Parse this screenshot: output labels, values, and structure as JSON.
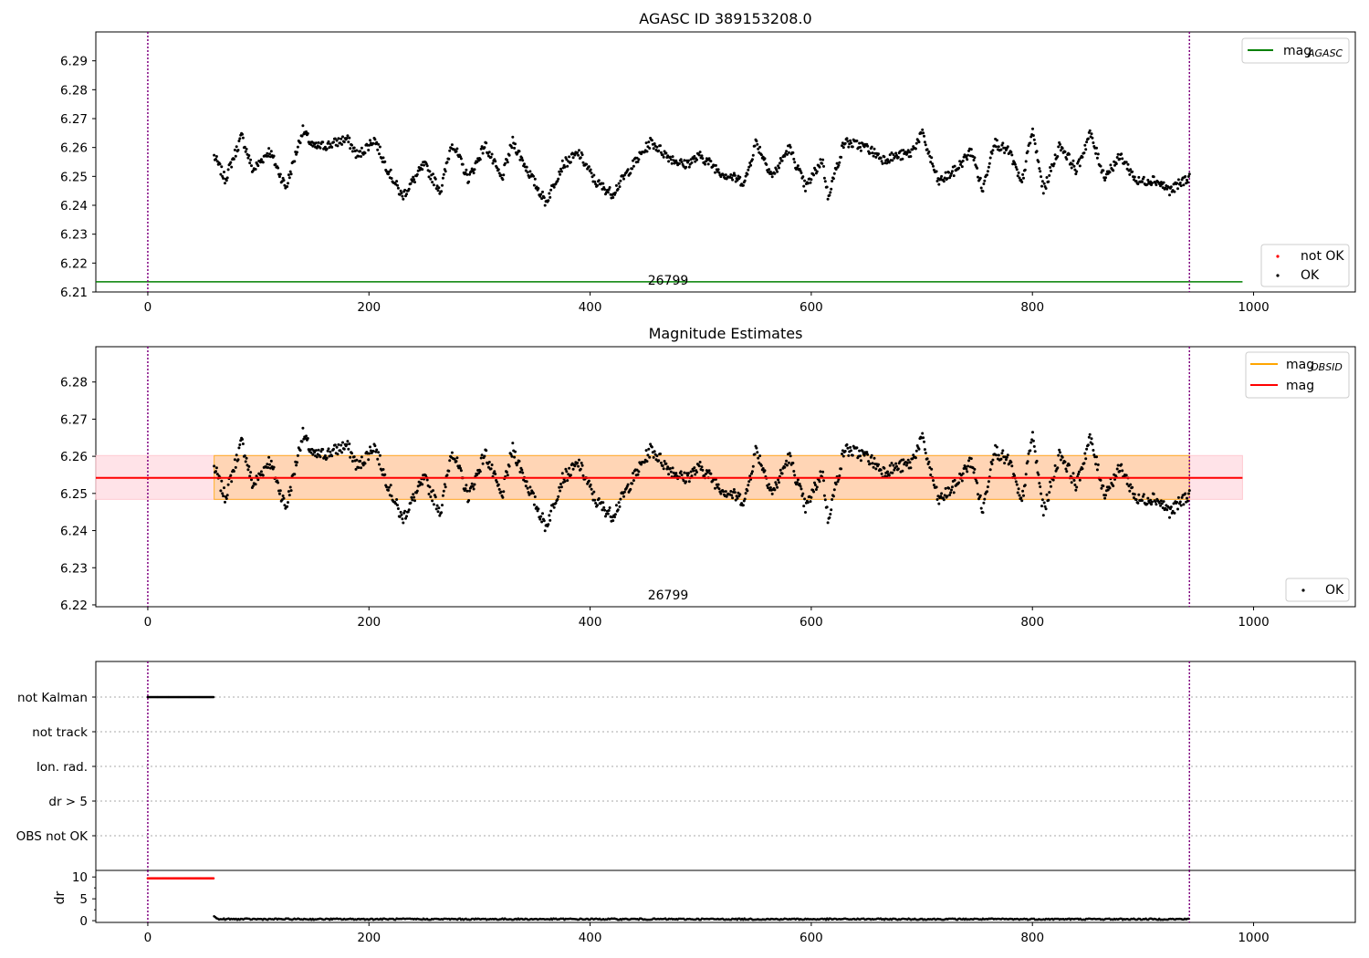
{
  "chart_data": [
    {
      "type": "scatter",
      "title": "AGASC ID 389153208.0",
      "xlim": [
        -47,
        1092
      ],
      "ylim": [
        6.21,
        6.3
      ],
      "xticks": [
        0,
        200,
        400,
        600,
        800,
        1000
      ],
      "yticks": [
        6.21,
        6.22,
        6.23,
        6.24,
        6.25,
        6.26,
        6.27,
        6.28,
        6.29
      ],
      "series": [
        {
          "name": "mag_AGASC",
          "kind": "hline",
          "value": 6.2135,
          "x_range": [
            -47,
            990
          ],
          "color": "#008000"
        },
        {
          "name": "not OK",
          "kind": "points",
          "color": "#ff0000"
        },
        {
          "name": "OK",
          "kind": "points",
          "color": "#000000",
          "anchors": [
            [
              60,
              6.257
            ],
            [
              70,
              6.249
            ],
            [
              85,
              6.264
            ],
            [
              95,
              6.252
            ],
            [
              110,
              6.259
            ],
            [
              125,
              6.246
            ],
            [
              140,
              6.266
            ],
            [
              150,
              6.26
            ],
            [
              165,
              6.261
            ],
            [
              180,
              6.263
            ],
            [
              190,
              6.257
            ],
            [
              205,
              6.263
            ],
            [
              215,
              6.254
            ],
            [
              230,
              6.243
            ],
            [
              250,
              6.254
            ],
            [
              265,
              6.245
            ],
            [
              275,
              6.262
            ],
            [
              290,
              6.249
            ],
            [
              305,
              6.261
            ],
            [
              320,
              6.249
            ],
            [
              330,
              6.262
            ],
            [
              345,
              6.251
            ],
            [
              360,
              6.241
            ],
            [
              375,
              6.254
            ],
            [
              390,
              6.258
            ],
            [
              405,
              6.248
            ],
            [
              420,
              6.244
            ],
            [
              435,
              6.252
            ],
            [
              455,
              6.262
            ],
            [
              470,
              6.257
            ],
            [
              485,
              6.254
            ],
            [
              500,
              6.257
            ],
            [
              520,
              6.251
            ],
            [
              540,
              6.248
            ],
            [
              550,
              6.262
            ],
            [
              565,
              6.25
            ],
            [
              580,
              6.26
            ],
            [
              595,
              6.246
            ],
            [
              610,
              6.256
            ],
            [
              615,
              6.243
            ],
            [
              630,
              6.262
            ],
            [
              650,
              6.26
            ],
            [
              665,
              6.256
            ],
            [
              690,
              6.258
            ],
            [
              700,
              6.265
            ],
            [
              715,
              6.248
            ],
            [
              730,
              6.252
            ],
            [
              745,
              6.259
            ],
            [
              755,
              6.245
            ],
            [
              765,
              6.262
            ],
            [
              780,
              6.258
            ],
            [
              790,
              6.247
            ],
            [
              800,
              6.266
            ],
            [
              810,
              6.245
            ],
            [
              825,
              6.261
            ],
            [
              840,
              6.252
            ],
            [
              852,
              6.265
            ],
            [
              865,
              6.25
            ],
            [
              880,
              6.257
            ],
            [
              895,
              6.248
            ],
            [
              910,
              6.249
            ],
            [
              925,
              6.245
            ],
            [
              942,
              6.25
            ]
          ]
        }
      ],
      "vlines": [
        0,
        942
      ],
      "vline_color": "#800080",
      "annotation": "26799",
      "legend_upper": [
        "mag",
        "AGASC"
      ],
      "legend_lower": [
        "not OK",
        "OK"
      ]
    },
    {
      "type": "scatter",
      "title": "Magnitude Estimates",
      "xlim": [
        -47,
        1092
      ],
      "ylim": [
        6.2195,
        6.2895
      ],
      "xticks": [
        0,
        200,
        400,
        600,
        800,
        1000
      ],
      "yticks": [
        6.22,
        6.23,
        6.24,
        6.25,
        6.26,
        6.27,
        6.28
      ],
      "series": [
        {
          "name": "mag_OBSID",
          "kind": "hline",
          "value": 6.2542,
          "x_range": [
            -47,
            990
          ],
          "color": "#ffa500"
        },
        {
          "name": "mag",
          "kind": "hline",
          "value": 6.2542,
          "x_range": [
            -47,
            990
          ],
          "color": "#ff0000"
        },
        {
          "name": "OK",
          "kind": "points",
          "color": "#000000",
          "same_as": "chart_data.0.series.2"
        }
      ],
      "bands": [
        {
          "y": [
            6.2484,
            6.2602
          ],
          "x_range": [
            -47,
            990
          ],
          "color": "#ffc0cb",
          "opacity": 0.45
        },
        {
          "y": [
            6.2484,
            6.2602
          ],
          "x_range": [
            60,
            942
          ],
          "color": "#ffa500",
          "opacity": 0.22
        }
      ],
      "vlines": [
        0,
        942
      ],
      "annotation": "26799",
      "legend_upper": [
        "mag",
        "OBSID",
        "mag"
      ],
      "legend_lower": [
        "OK"
      ]
    },
    {
      "type": "scatter",
      "title": "",
      "xlim": [
        -47,
        1092
      ],
      "flags": [
        "not Kalman",
        "not track",
        "Ion. rad.",
        "dr > 5",
        "OBS not OK"
      ],
      "not_kalman_x": [
        0,
        60
      ],
      "vlines": [
        0,
        942
      ]
    },
    {
      "type": "scatter",
      "title": "",
      "xlim": [
        -47,
        1092
      ],
      "ylim": [
        -0.4,
        11.5
      ],
      "ylabel": "dr",
      "yticks": [
        0,
        5,
        10
      ],
      "xticks": [
        0,
        200,
        400,
        600,
        800,
        1000
      ],
      "series": [
        {
          "name": "dr high",
          "x_range": [
            0,
            60
          ],
          "value": 9.7,
          "color": "#ff0000"
        },
        {
          "name": "dr",
          "x_range": [
            60,
            942
          ],
          "value": 0.35,
          "color": "#000000"
        }
      ],
      "vlines": [
        0,
        942
      ]
    }
  ]
}
